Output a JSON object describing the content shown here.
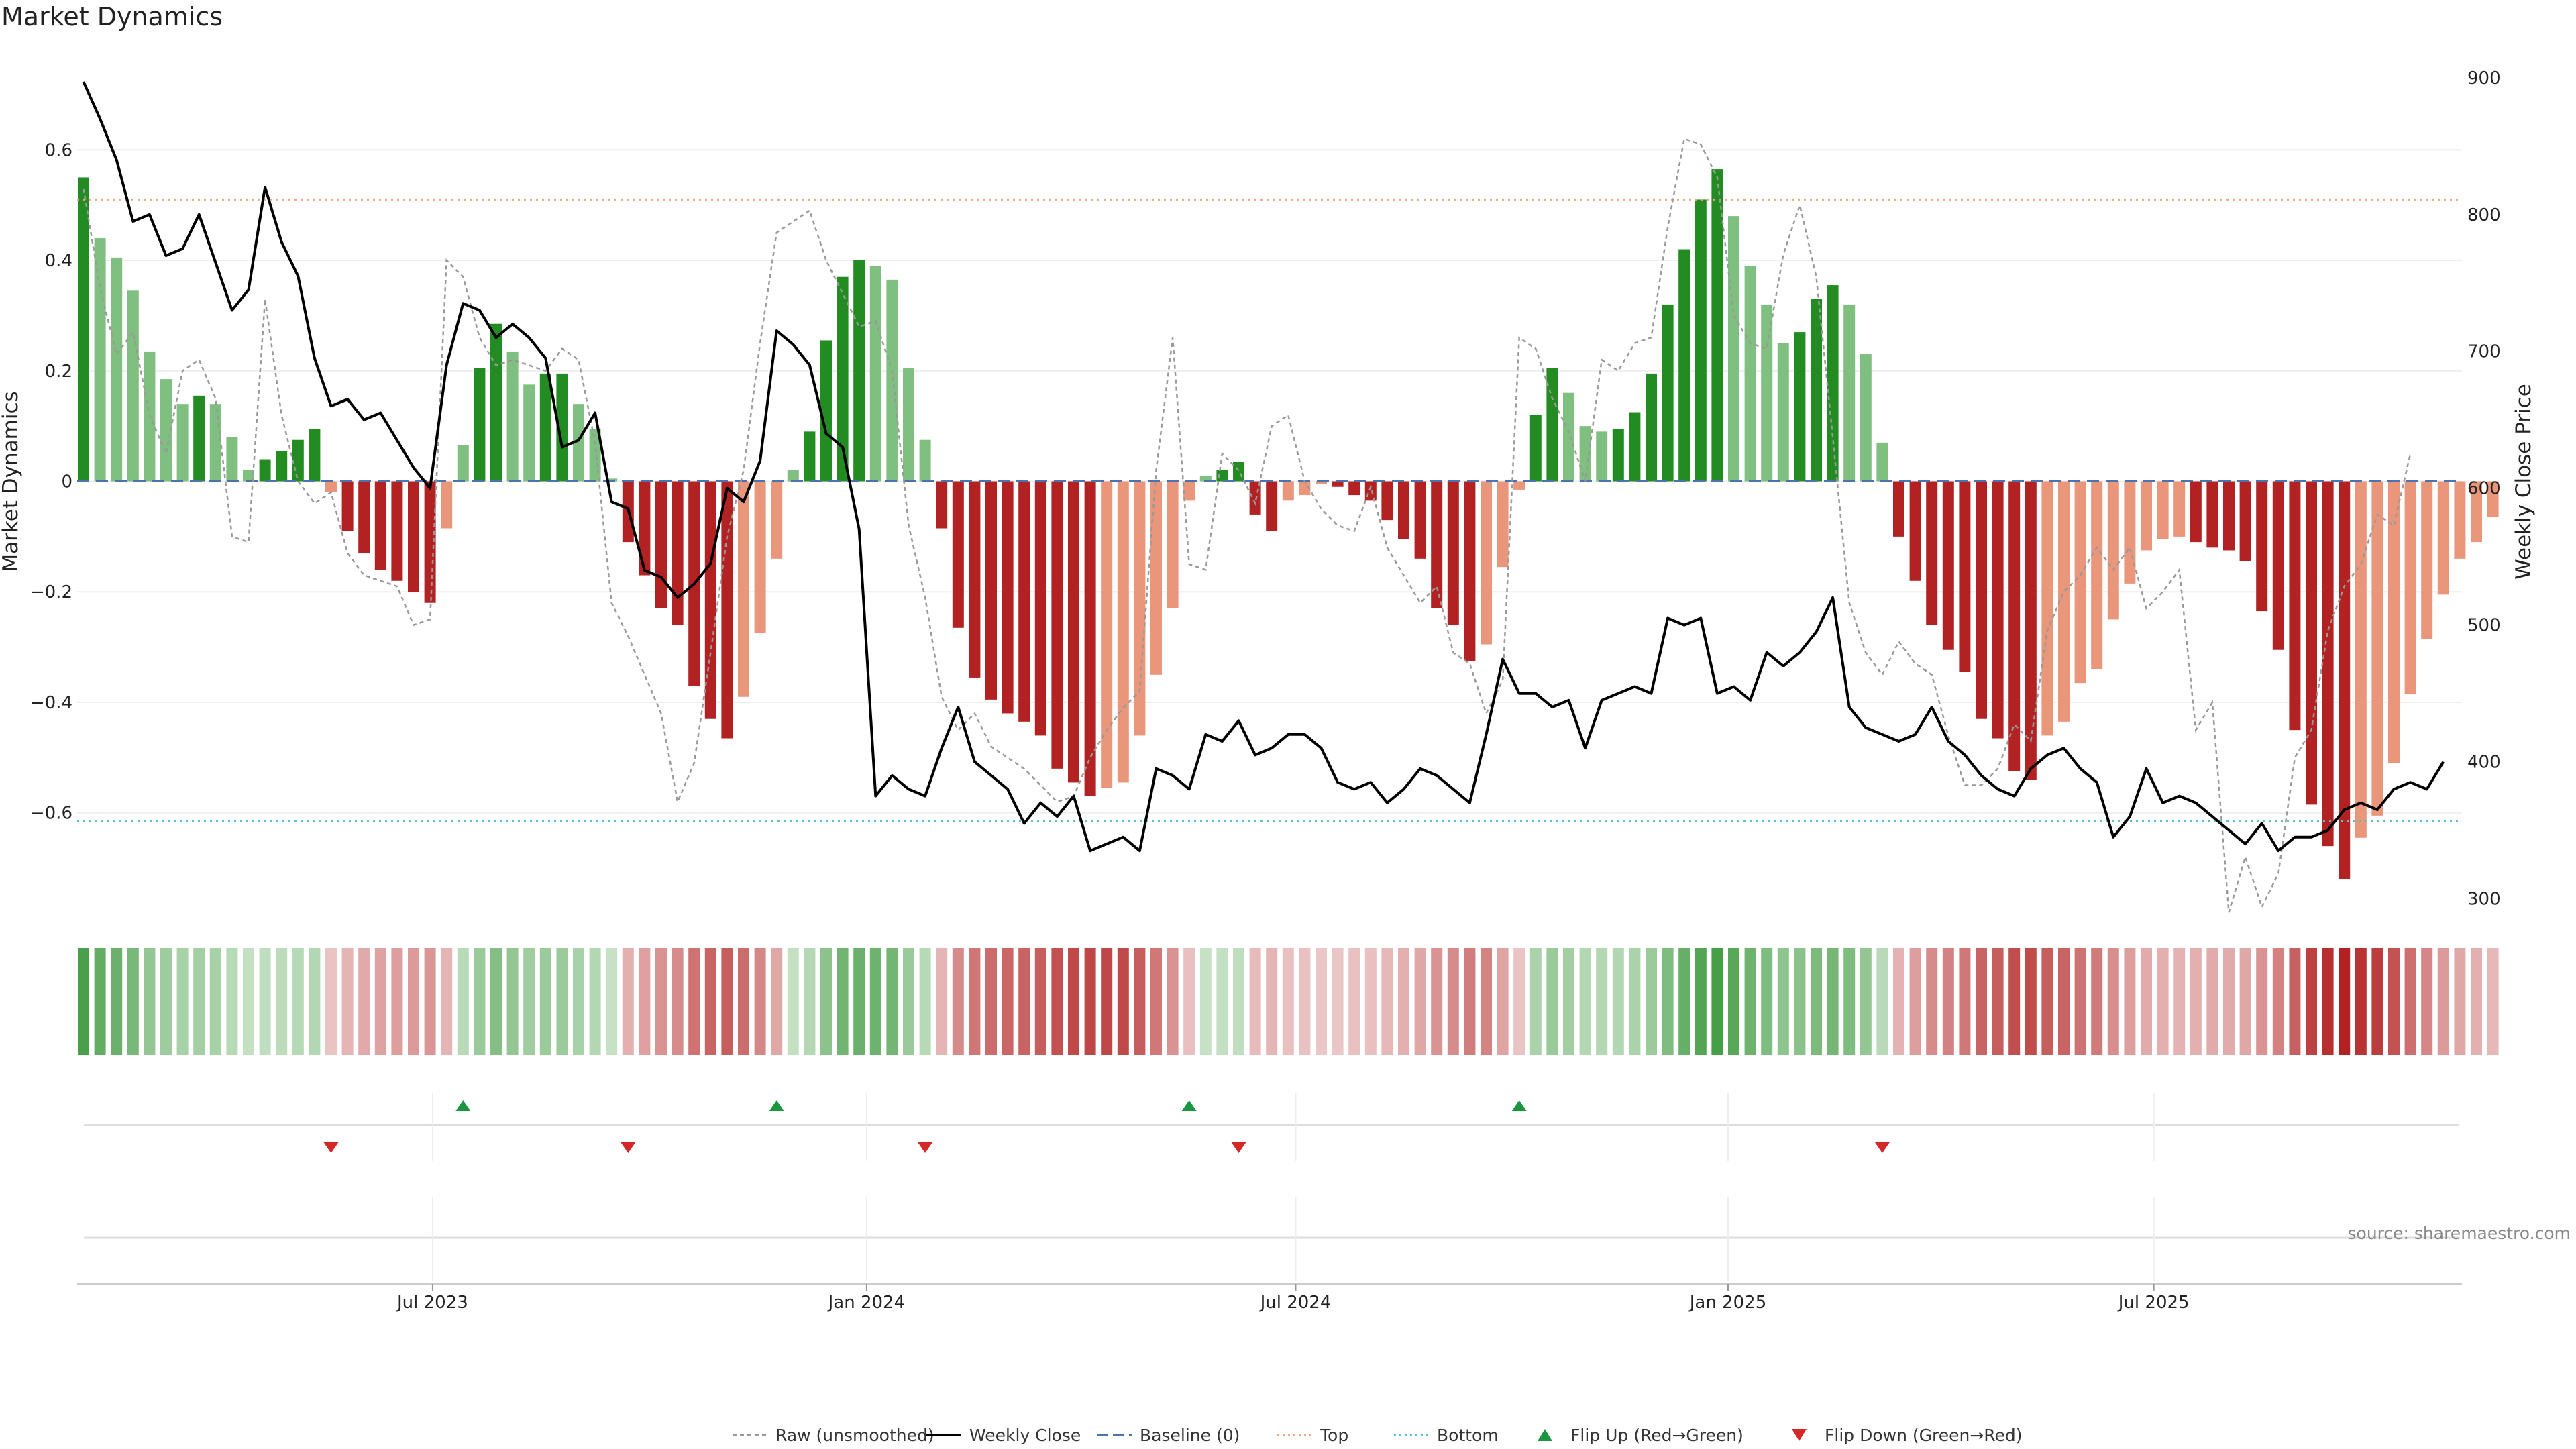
{
  "chart_data": {
    "type": "bar",
    "title": "Market Dynamics",
    "ylabel_left": "Market Dynamics",
    "ylabel_right": "Weekly Close Price",
    "ylim_left": [
      -0.78,
      0.78
    ],
    "ylim_right": [
      290,
      920
    ],
    "yticks_left": [
      0.6,
      0.4,
      0.2,
      0,
      -0.2,
      -0.4,
      -0.6
    ],
    "yticks_left_labels": [
      "0.6",
      "0.4",
      "0.2",
      "0",
      "−0.2",
      "−0.4",
      "−0.6"
    ],
    "yticks_right": [
      900,
      800,
      700,
      600,
      500,
      400,
      300
    ],
    "yticks_right_labels": [
      "900",
      "800",
      "700",
      "600",
      "500",
      "400",
      "300"
    ],
    "x_tick_labels": [
      "Jul 2023",
      "Jan 2024",
      "Jul 2024",
      "Jan 2025",
      "Jul 2025"
    ],
    "x_tick_weeks": [
      21.5,
      47.8,
      73.8,
      100,
      125.8
    ],
    "top_line": 0.51,
    "bottom_line": -0.615,
    "baseline": 0,
    "histogram": [
      0.55,
      0.44,
      0.405,
      0.345,
      0.235,
      0.185,
      0.14,
      0.155,
      0.14,
      0.08,
      0.02,
      0.04,
      0.055,
      0.075,
      0.095,
      -0.02,
      -0.09,
      -0.13,
      -0.16,
      -0.18,
      -0.2,
      -0.22,
      -0.085,
      0.065,
      0.205,
      0.285,
      0.235,
      0.175,
      0.195,
      0.195,
      0.14,
      0.095,
      0.005,
      -0.11,
      -0.17,
      -0.23,
      -0.26,
      -0.37,
      -0.43,
      -0.465,
      -0.39,
      -0.275,
      -0.14,
      0.02,
      0.09,
      0.255,
      0.37,
      0.4,
      0.39,
      0.365,
      0.205,
      0.075,
      -0.085,
      -0.265,
      -0.355,
      -0.395,
      -0.42,
      -0.435,
      -0.46,
      -0.52,
      -0.545,
      -0.57,
      -0.555,
      -0.545,
      -0.46,
      -0.35,
      -0.23,
      -0.035,
      0.01,
      0.02,
      0.035,
      -0.06,
      -0.09,
      -0.035,
      -0.025,
      -0.005,
      -0.01,
      -0.025,
      -0.035,
      -0.07,
      -0.105,
      -0.14,
      -0.23,
      -0.26,
      -0.325,
      -0.295,
      -0.155,
      -0.015,
      0.12,
      0.205,
      0.16,
      0.1,
      0.09,
      0.095,
      0.125,
      0.195,
      0.32,
      0.42,
      0.51,
      0.565,
      0.48,
      0.39,
      0.32,
      0.25,
      0.27,
      0.33,
      0.355,
      0.32,
      0.23,
      0.07,
      -0.1,
      -0.18,
      -0.26,
      -0.305,
      -0.345,
      -0.43,
      -0.465,
      -0.525,
      -0.54,
      -0.46,
      -0.435,
      -0.365,
      -0.34,
      -0.25,
      -0.185,
      -0.125,
      -0.105,
      -0.1,
      -0.11,
      -0.12,
      -0.125,
      -0.145,
      -0.235,
      -0.305,
      -0.45,
      -0.585,
      -0.66,
      -0.72,
      -0.645,
      -0.605,
      -0.51,
      -0.385,
      -0.285,
      -0.205,
      -0.14,
      -0.11,
      -0.065
    ],
    "raw_unsmoothed": [
      0.53,
      0.35,
      0.23,
      0.27,
      0.12,
      0.05,
      0.2,
      0.22,
      0.15,
      -0.1,
      -0.11,
      0.33,
      0.12,
      0,
      -0.04,
      -0.02,
      -0.13,
      -0.17,
      -0.18,
      -0.19,
      -0.26,
      -0.25,
      0.4,
      0.37,
      0.26,
      0.21,
      0.22,
      0.21,
      0.2,
      0.24,
      0.22,
      0.07,
      -0.22,
      -0.28,
      -0.35,
      -0.42,
      -0.58,
      -0.51,
      -0.31,
      -0.1,
      0.02,
      0.25,
      0.45,
      0.47,
      0.49,
      0.4,
      0.34,
      0.28,
      0.29,
      0.2,
      -0.08,
      -0.21,
      -0.39,
      -0.45,
      -0.42,
      -0.48,
      -0.5,
      -0.52,
      -0.55,
      -0.58,
      -0.57,
      -0.5,
      -0.45,
      -0.41,
      -0.38,
      0.02,
      0.26,
      -0.15,
      -0.16,
      0.05,
      0.02,
      -0.04,
      0.1,
      0.12,
      0.0,
      -0.05,
      -0.08,
      -0.09,
      -0.01,
      -0.12,
      -0.17,
      -0.22,
      -0.19,
      -0.31,
      -0.33,
      -0.42,
      -0.36,
      0.26,
      0.24,
      0.15,
      0.09,
      0.0,
      0.22,
      0.2,
      0.25,
      0.26,
      0.46,
      0.62,
      0.61,
      0.55,
      0.3,
      0.25,
      0.24,
      0.41,
      0.5,
      0.37,
      0.08,
      -0.22,
      -0.31,
      -0.35,
      -0.29,
      -0.33,
      -0.35,
      -0.46,
      -0.55,
      -0.55,
      -0.52,
      -0.44,
      -0.47,
      -0.27,
      -0.2,
      -0.17,
      -0.12,
      -0.16,
      -0.12,
      -0.23,
      -0.2,
      -0.16,
      -0.45,
      -0.4,
      -0.78,
      -0.68,
      -0.77,
      -0.71,
      -0.5,
      -0.45,
      -0.27,
      -0.19,
      -0.15,
      -0.06,
      -0.08,
      0.05
    ],
    "weekly_close": [
      897,
      870,
      840,
      795,
      800,
      770,
      775,
      800,
      765,
      730,
      745,
      820,
      780,
      755,
      695,
      660,
      665,
      650,
      655,
      635,
      615,
      600,
      690,
      735,
      730,
      710,
      720,
      710,
      695,
      630,
      635,
      655,
      590,
      585,
      540,
      535,
      520,
      530,
      545,
      600,
      590,
      620,
      715,
      705,
      690,
      640,
      630,
      570,
      375,
      390,
      380,
      375,
      410,
      440,
      400,
      390,
      380,
      355,
      370,
      360,
      375,
      335,
      340,
      345,
      335,
      395,
      390,
      380,
      420,
      415,
      430,
      405,
      410,
      420,
      420,
      410,
      385,
      380,
      385,
      370,
      380,
      395,
      390,
      380,
      370,
      420,
      475,
      450,
      450,
      440,
      445,
      410,
      445,
      450,
      455,
      450,
      505,
      500,
      505,
      450,
      455,
      445,
      480,
      470,
      480,
      495,
      520,
      440,
      425,
      420,
      415,
      420,
      440,
      415,
      405,
      390,
      380,
      375,
      395,
      405,
      410,
      395,
      385,
      345,
      360,
      395,
      370,
      375,
      370,
      360,
      350,
      340,
      355,
      335,
      345,
      345,
      350,
      365,
      370,
      365,
      380,
      385,
      380,
      400
    ],
    "flip_up_weeks": [
      23,
      42,
      67,
      87
    ],
    "flip_down_weeks": [
      15,
      33,
      51,
      70,
      109
    ],
    "heat_strip": "weekly color strip: green when momentum positive, red when negative, opacity by magnitude",
    "legend": [
      {
        "label": "Raw (unsmoothed)",
        "icon": "dotted-gray-line"
      },
      {
        "label": "Weekly Close",
        "icon": "solid-black-line"
      },
      {
        "label": "Baseline (0)",
        "icon": "dashed-blue-line"
      },
      {
        "label": "Top",
        "icon": "dotted-orange-line"
      },
      {
        "label": "Bottom",
        "icon": "dotted-teal-line"
      },
      {
        "label": "Flip Up (Red→Green)",
        "icon": "green-up-triangle"
      },
      {
        "label": "Flip Down (Green→Red)",
        "icon": "red-down-triangle"
      }
    ],
    "source": "source: sharemaestro.com"
  },
  "colors": {
    "pos_strong": "#228B22",
    "pos_weak": "#7FBF7F",
    "neg_strong": "#B22222",
    "neg_weak": "#E9967A",
    "raw": "#999999",
    "close": "#000000",
    "baseline": "#4C72B0",
    "top": "#F4A582",
    "bottom": "#5BC0C0",
    "flip_up": "#1a9641",
    "flip_down": "#d62728",
    "grid": "#eeeeee"
  }
}
